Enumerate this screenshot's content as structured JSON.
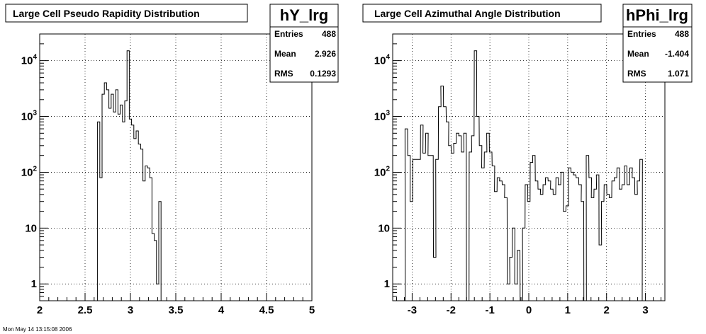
{
  "footer_text": "Mon May 14 13:15:08 2006",
  "chart_data": [
    {
      "type": "histogram",
      "title": "Large Cell Pseudo Rapidity Distribution",
      "name": "hY_lrg",
      "stats": [
        {
          "label": "Entries",
          "value": "488"
        },
        {
          "label": "Mean",
          "value": "2.926"
        },
        {
          "label": "RMS",
          "value": "0.1293"
        }
      ],
      "xlim": [
        2,
        5
      ],
      "ylim": [
        0.5,
        30000
      ],
      "yscale": "log",
      "grid": true,
      "x_ticks": [
        {
          "v": 2,
          "label": "2"
        },
        {
          "v": 2.5,
          "label": "2.5"
        },
        {
          "v": 3,
          "label": "3"
        },
        {
          "v": 3.5,
          "label": "3.5"
        },
        {
          "v": 4,
          "label": "4"
        },
        {
          "v": 4.5,
          "label": "4.5"
        },
        {
          "v": 5,
          "label": "5"
        }
      ],
      "y_ticks": [
        {
          "v": 1,
          "label": "1"
        },
        {
          "v": 10,
          "label": "10"
        },
        {
          "v": 100,
          "label": "10^2"
        },
        {
          "v": 1000,
          "label": "10^3"
        },
        {
          "v": 10000,
          "label": "10^4"
        }
      ],
      "bin_width": 0.025,
      "bins": [
        {
          "x": 2.625,
          "y": 0.3
        },
        {
          "x": 2.65,
          "y": 800
        },
        {
          "x": 2.675,
          "y": 80
        },
        {
          "x": 2.7,
          "y": 2500
        },
        {
          "x": 2.725,
          "y": 4000
        },
        {
          "x": 2.75,
          "y": 3000
        },
        {
          "x": 2.775,
          "y": 1400
        },
        {
          "x": 2.8,
          "y": 2500
        },
        {
          "x": 2.825,
          "y": 1200
        },
        {
          "x": 2.85,
          "y": 3000
        },
        {
          "x": 2.875,
          "y": 1100
        },
        {
          "x": 2.9,
          "y": 1600
        },
        {
          "x": 2.925,
          "y": 800
        },
        {
          "x": 2.95,
          "y": 1900
        },
        {
          "x": 2.975,
          "y": 15000
        },
        {
          "x": 3.0,
          "y": 900
        },
        {
          "x": 3.025,
          "y": 700
        },
        {
          "x": 3.05,
          "y": 400
        },
        {
          "x": 3.075,
          "y": 550
        },
        {
          "x": 3.1,
          "y": 320
        },
        {
          "x": 3.125,
          "y": 260
        },
        {
          "x": 3.15,
          "y": 70
        },
        {
          "x": 3.175,
          "y": 130
        },
        {
          "x": 3.2,
          "y": 120
        },
        {
          "x": 3.225,
          "y": 80
        },
        {
          "x": 3.25,
          "y": 8
        },
        {
          "x": 3.275,
          "y": 6
        },
        {
          "x": 3.3,
          "y": 1
        },
        {
          "x": 3.325,
          "y": 30
        },
        {
          "x": 3.35,
          "y": 0.3
        }
      ]
    },
    {
      "type": "histogram",
      "title": "Large Cell Azimuthal Angle Distribution",
      "name": "hPhi_lrg",
      "stats": [
        {
          "label": "Entries",
          "value": "488"
        },
        {
          "label": "Mean",
          "value": "-1.404"
        },
        {
          "label": "RMS",
          "value": "1.071"
        }
      ],
      "xlim": [
        -3.5,
        3.5
      ],
      "ylim": [
        0.5,
        30000
      ],
      "yscale": "log",
      "grid": true,
      "x_ticks": [
        {
          "v": -3,
          "label": "-3"
        },
        {
          "v": -2,
          "label": "-2"
        },
        {
          "v": -1,
          "label": "-1"
        },
        {
          "v": 0,
          "label": "0"
        },
        {
          "v": 1,
          "label": "1"
        },
        {
          "v": 2,
          "label": "2"
        },
        {
          "v": 3,
          "label": "3"
        }
      ],
      "y_ticks": [
        {
          "v": 1,
          "label": "1"
        },
        {
          "v": 10,
          "label": "10"
        },
        {
          "v": 100,
          "label": "10^2"
        },
        {
          "v": 1000,
          "label": "10^3"
        },
        {
          "v": 10000,
          "label": "10^4"
        }
      ],
      "bin_width": 0.0654,
      "bins": [
        {
          "x": -3.21,
          "y": 0.3
        },
        {
          "x": -3.15,
          "y": 600
        },
        {
          "x": -3.08,
          "y": 200
        },
        {
          "x": -3.02,
          "y": 30
        },
        {
          "x": -2.95,
          "y": 170
        },
        {
          "x": -2.88,
          "y": 170
        },
        {
          "x": -2.82,
          "y": 170
        },
        {
          "x": -2.75,
          "y": 700
        },
        {
          "x": -2.69,
          "y": 220
        },
        {
          "x": -2.62,
          "y": 500
        },
        {
          "x": -2.56,
          "y": 200
        },
        {
          "x": -2.49,
          "y": 200
        },
        {
          "x": -2.42,
          "y": 3
        },
        {
          "x": -2.36,
          "y": 170
        },
        {
          "x": -2.29,
          "y": 1500
        },
        {
          "x": -2.23,
          "y": 3500
        },
        {
          "x": -2.16,
          "y": 1500
        },
        {
          "x": -2.09,
          "y": 800
        },
        {
          "x": -2.03,
          "y": 300
        },
        {
          "x": -1.96,
          "y": 220
        },
        {
          "x": -1.9,
          "y": 330
        },
        {
          "x": -1.83,
          "y": 500
        },
        {
          "x": -1.77,
          "y": 450
        },
        {
          "x": -1.7,
          "y": 230
        },
        {
          "x": -1.64,
          "y": 500
        },
        {
          "x": -1.57,
          "y": 0.3
        },
        {
          "x": -1.5,
          "y": 230
        },
        {
          "x": -1.44,
          "y": 450
        },
        {
          "x": -1.37,
          "y": 15000
        },
        {
          "x": -1.31,
          "y": 1000
        },
        {
          "x": -1.24,
          "y": 300
        },
        {
          "x": -1.18,
          "y": 120
        },
        {
          "x": -1.11,
          "y": 230
        },
        {
          "x": -1.05,
          "y": 500
        },
        {
          "x": -0.98,
          "y": 230
        },
        {
          "x": -0.91,
          "y": 130
        },
        {
          "x": -0.85,
          "y": 45
        },
        {
          "x": -0.78,
          "y": 80
        },
        {
          "x": -0.72,
          "y": 70
        },
        {
          "x": -0.65,
          "y": 60
        },
        {
          "x": -0.59,
          "y": 35
        },
        {
          "x": -0.52,
          "y": 1
        },
        {
          "x": -0.46,
          "y": 3
        },
        {
          "x": -0.39,
          "y": 10
        },
        {
          "x": -0.33,
          "y": 1
        },
        {
          "x": -0.26,
          "y": 4
        },
        {
          "x": -0.19,
          "y": 0.3
        },
        {
          "x": -0.13,
          "y": 10
        },
        {
          "x": -0.06,
          "y": 60
        },
        {
          "x": 0.0,
          "y": 30
        },
        {
          "x": 0.07,
          "y": 150
        },
        {
          "x": 0.13,
          "y": 200
        },
        {
          "x": 0.2,
          "y": 70
        },
        {
          "x": 0.27,
          "y": 50
        },
        {
          "x": 0.33,
          "y": 40
        },
        {
          "x": 0.4,
          "y": 60
        },
        {
          "x": 0.46,
          "y": 80
        },
        {
          "x": 0.53,
          "y": 70
        },
        {
          "x": 0.59,
          "y": 50
        },
        {
          "x": 0.66,
          "y": 40
        },
        {
          "x": 0.73,
          "y": 80
        },
        {
          "x": 0.79,
          "y": 60
        },
        {
          "x": 0.86,
          "y": 100
        },
        {
          "x": 0.92,
          "y": 20
        },
        {
          "x": 0.99,
          "y": 25
        },
        {
          "x": 1.05,
          "y": 120
        },
        {
          "x": 1.12,
          "y": 100
        },
        {
          "x": 1.18,
          "y": 90
        },
        {
          "x": 1.25,
          "y": 80
        },
        {
          "x": 1.32,
          "y": 60
        },
        {
          "x": 1.38,
          "y": 30
        },
        {
          "x": 1.45,
          "y": 0.3
        },
        {
          "x": 1.51,
          "y": 200
        },
        {
          "x": 1.58,
          "y": 80
        },
        {
          "x": 1.64,
          "y": 35
        },
        {
          "x": 1.71,
          "y": 50
        },
        {
          "x": 1.77,
          "y": 90
        },
        {
          "x": 1.84,
          "y": 5
        },
        {
          "x": 1.9,
          "y": 30
        },
        {
          "x": 1.97,
          "y": 60
        },
        {
          "x": 2.04,
          "y": 40
        },
        {
          "x": 2.1,
          "y": 35
        },
        {
          "x": 2.17,
          "y": 70
        },
        {
          "x": 2.23,
          "y": 80
        },
        {
          "x": 2.3,
          "y": 120
        },
        {
          "x": 2.36,
          "y": 50
        },
        {
          "x": 2.43,
          "y": 60
        },
        {
          "x": 2.49,
          "y": 130
        },
        {
          "x": 2.56,
          "y": 60
        },
        {
          "x": 2.63,
          "y": 120
        },
        {
          "x": 2.69,
          "y": 80
        },
        {
          "x": 2.76,
          "y": 40
        },
        {
          "x": 2.82,
          "y": 70
        },
        {
          "x": 2.89,
          "y": 170
        },
        {
          "x": 2.95,
          "y": 0.3
        }
      ]
    }
  ]
}
